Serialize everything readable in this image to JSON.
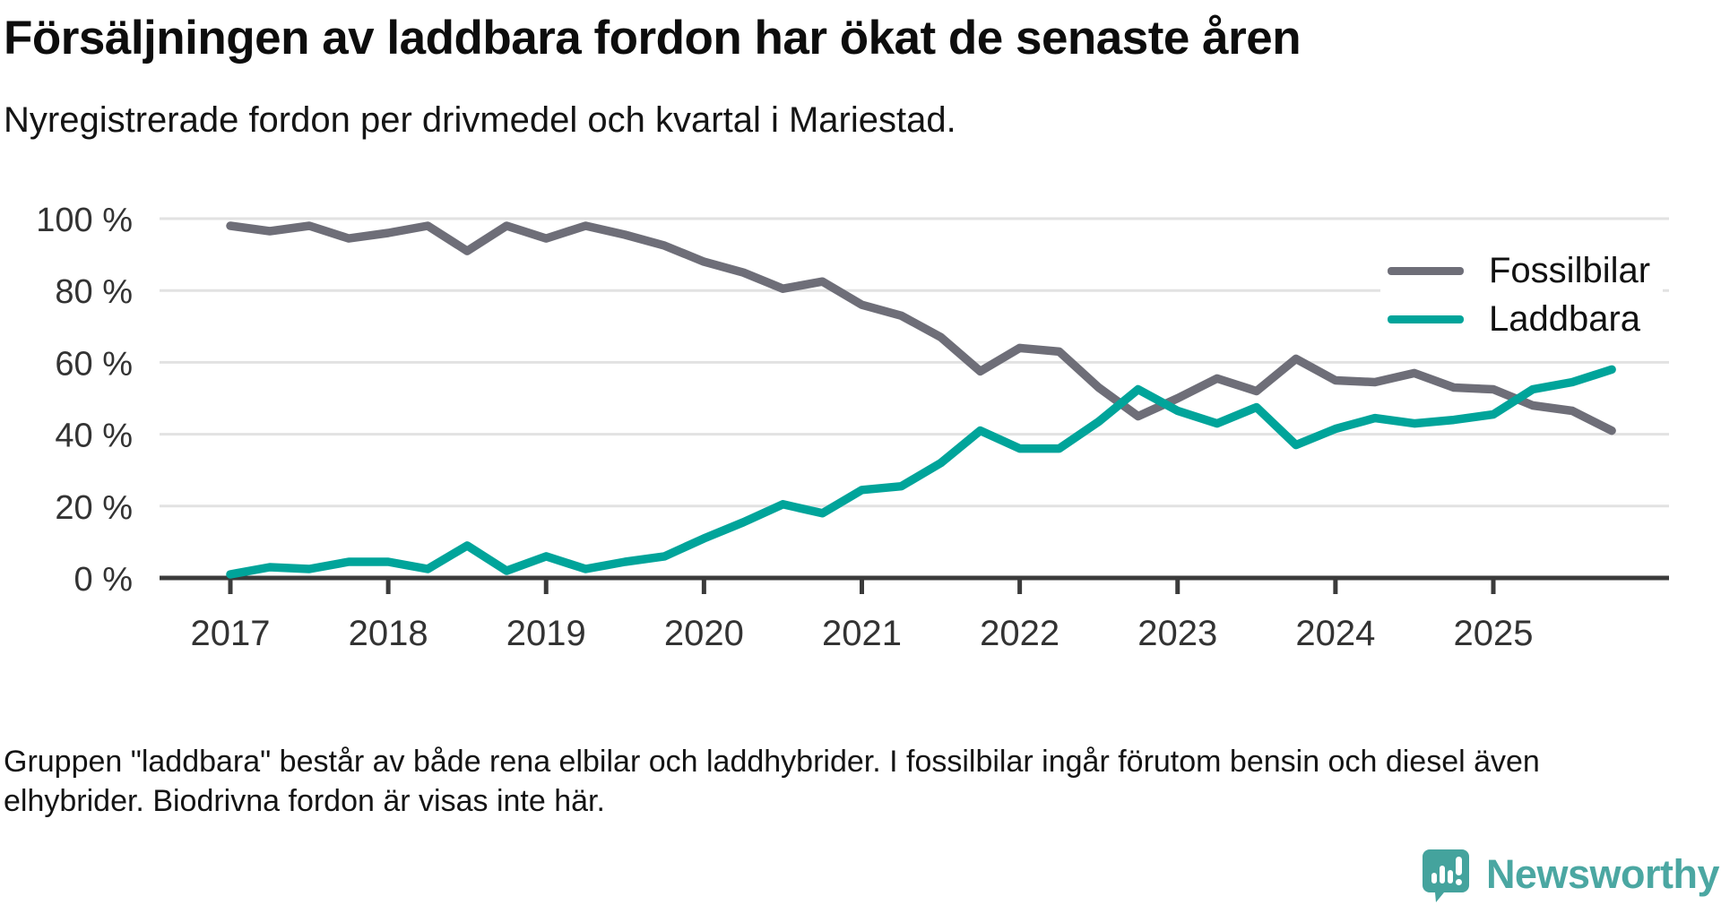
{
  "title": "Försäljningen av laddbara fordon har ökat de senaste åren",
  "subtitle": "Nyregistrerade fordon per drivmedel och kvartal i Mariestad.",
  "footnote": {
    "line1": "Gruppen \"laddbara\" består av både rena elbilar och laddhybrider. I fossilbilar ingår förutom bensin och diesel även",
    "line2": "elhybrider. Biodrivna fordon är visas inte här."
  },
  "logo": {
    "brand": "Newsworthy"
  },
  "colors": {
    "fossil": "#6e6e78",
    "laddbara": "#00a49a",
    "grid": "#e2e2e2",
    "axis": "#3b3b3b",
    "tick_label": "#333333",
    "logo_teal": "#44a39d"
  },
  "chart_data": {
    "type": "line",
    "title": "Försäljningen av laddbara fordon har ökat de senaste åren",
    "subtitle": "Nyregistrerade fordon per drivmedel och kvartal i Mariestad.",
    "x_unit": "quarter",
    "x_start": 2017,
    "x_step": 0.25,
    "ylim": [
      0,
      100
    ],
    "grid": true,
    "legend_position": "top-right",
    "y_ticks": [
      0,
      20,
      40,
      60,
      80,
      100
    ],
    "y_tick_labels": [
      "0 %",
      "20 %",
      "40 %",
      "60 %",
      "80 %",
      "100 %"
    ],
    "x_ticks": [
      2017,
      2018,
      2019,
      2020,
      2021,
      2022,
      2023,
      2024,
      2025
    ],
    "x_tick_labels": [
      "2017",
      "2018",
      "2019",
      "2020",
      "2021",
      "2022",
      "2023",
      "2024",
      "2025"
    ],
    "series": [
      {
        "name": "Fossilbilar",
        "color": "#6e6e78",
        "values": [
          98,
          96.5,
          98,
          94.5,
          96,
          98,
          91,
          98,
          94.5,
          98,
          95.5,
          92.5,
          88,
          85,
          80.5,
          82.5,
          76,
          73,
          67,
          57.5,
          64,
          63,
          53,
          45,
          50,
          55.5,
          52,
          61,
          55,
          54.5,
          57,
          53,
          52.5,
          48,
          46.5,
          41
        ]
      },
      {
        "name": "Laddbara",
        "color": "#00a49a",
        "values": [
          1,
          3,
          2.5,
          4.5,
          4.5,
          2.5,
          9,
          2,
          6,
          2.5,
          4.5,
          6,
          11,
          15.5,
          20.5,
          18,
          24.5,
          25.5,
          32,
          41,
          36,
          36,
          43.5,
          52.5,
          46.5,
          43,
          47.5,
          37,
          41.5,
          44.5,
          43,
          44,
          45.5,
          52.5,
          54.5,
          58
        ]
      }
    ]
  }
}
